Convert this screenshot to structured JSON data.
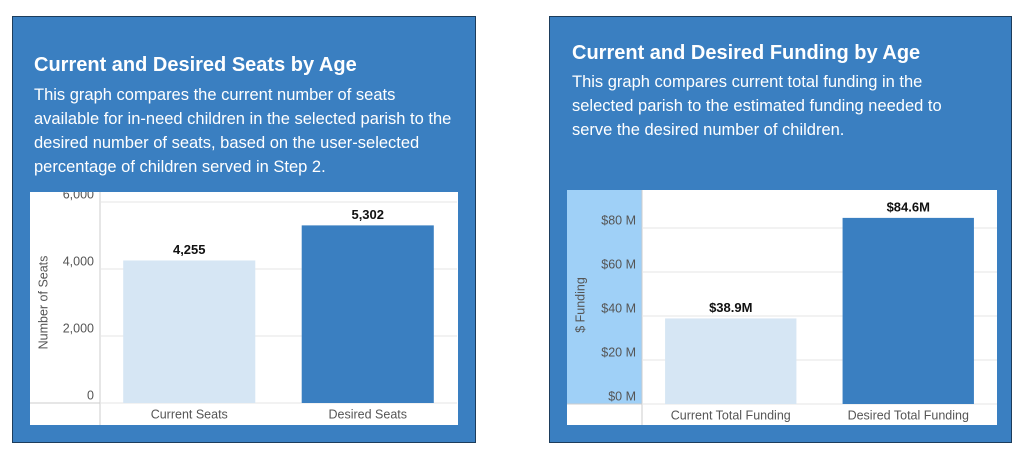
{
  "chart_data": [
    {
      "type": "bar",
      "title": "Current and Desired Seats by Age",
      "subtitle": "This graph compares the current number of seats available for in-need children in the selected parish to the desired number of seats, based on the user-selected percentage of children served in Step 2.",
      "y_label": "Number of Seats",
      "categories": [
        "Current Seats",
        "Desired Seats"
      ],
      "values": [
        4255,
        5302
      ],
      "value_labels": [
        "4,255",
        "5,302"
      ],
      "colors": [
        "#d6e6f4",
        "#3a7fc1"
      ],
      "ylim": [
        0,
        6000
      ],
      "yticks": [
        0,
        {
          "value": 2000,
          "label": "2,000"
        },
        {
          "value": 4000,
          "label": "4,000"
        },
        {
          "value": 6000,
          "label": "6,000"
        }
      ],
      "grid": true
    },
    {
      "type": "bar",
      "title": "Current and Desired Funding by Age",
      "subtitle": "This graph compares current total funding in the selected parish to the estimated funding needed to serve the desired number of children.",
      "y_label": "$ Funding",
      "categories": [
        "Current Total Funding",
        "Desired Total Funding"
      ],
      "values": [
        38.9,
        84.6
      ],
      "value_labels": [
        "$38.9M",
        "$84.6M"
      ],
      "colors": [
        "#d6e6f4",
        "#3a7fc1"
      ],
      "ylim": [
        0,
        90
      ],
      "yticks": [
        {
          "value": 0,
          "label": "$0 M"
        },
        {
          "value": 20,
          "label": "$20 M"
        },
        {
          "value": 40,
          "label": "$40 M"
        },
        {
          "value": 60,
          "label": "$60 M"
        },
        {
          "value": 80,
          "label": "$80 M"
        }
      ],
      "grid": true
    }
  ]
}
